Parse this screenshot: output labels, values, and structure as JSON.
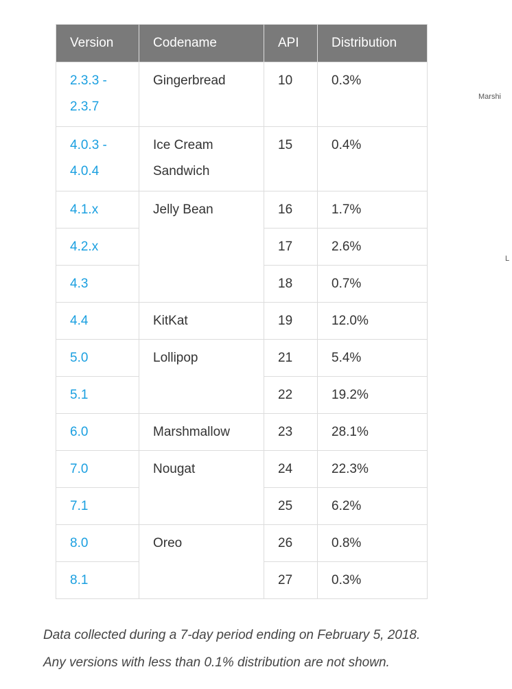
{
  "table": {
    "headers": [
      "Version",
      "Codename",
      "API",
      "Distribution"
    ],
    "groups": [
      {
        "codename": "Gingerbread",
        "rows": [
          {
            "version": "2.3.3 - 2.3.7",
            "api": "10",
            "distribution": "0.3%"
          }
        ]
      },
      {
        "codename": "Ice Cream Sandwich",
        "rows": [
          {
            "version": "4.0.3 - 4.0.4",
            "api": "15",
            "distribution": "0.4%"
          }
        ]
      },
      {
        "codename": "Jelly Bean",
        "rows": [
          {
            "version": "4.1.x",
            "api": "16",
            "distribution": "1.7%"
          },
          {
            "version": "4.2.x",
            "api": "17",
            "distribution": "2.6%"
          },
          {
            "version": "4.3",
            "api": "18",
            "distribution": "0.7%"
          }
        ]
      },
      {
        "codename": "KitKat",
        "rows": [
          {
            "version": "4.4",
            "api": "19",
            "distribution": "12.0%"
          }
        ]
      },
      {
        "codename": "Lollipop",
        "rows": [
          {
            "version": "5.0",
            "api": "21",
            "distribution": "5.4%"
          },
          {
            "version": "5.1",
            "api": "22",
            "distribution": "19.2%"
          }
        ]
      },
      {
        "codename": "Marshmallow",
        "rows": [
          {
            "version": "6.0",
            "api": "23",
            "distribution": "28.1%"
          }
        ]
      },
      {
        "codename": "Nougat",
        "rows": [
          {
            "version": "7.0",
            "api": "24",
            "distribution": "22.3%"
          },
          {
            "version": "7.1",
            "api": "25",
            "distribution": "6.2%"
          }
        ]
      },
      {
        "codename": "Oreo",
        "rows": [
          {
            "version": "8.0",
            "api": "26",
            "distribution": "0.8%"
          },
          {
            "version": "8.1",
            "api": "27",
            "distribution": "0.3%"
          }
        ]
      }
    ]
  },
  "caption": {
    "line1": "Data collected during a 7-day period ending on February 5, 2018.",
    "line2": "Any versions with less than 0.1% distribution are not shown."
  },
  "cropped_chart_labels": {
    "marshmallow_partial": "Marshi",
    "lollipop_partial": "L"
  },
  "colors": {
    "header_bg": "#7a7a7a",
    "link": "#1a9fe0",
    "border": "#dcdcdc"
  }
}
